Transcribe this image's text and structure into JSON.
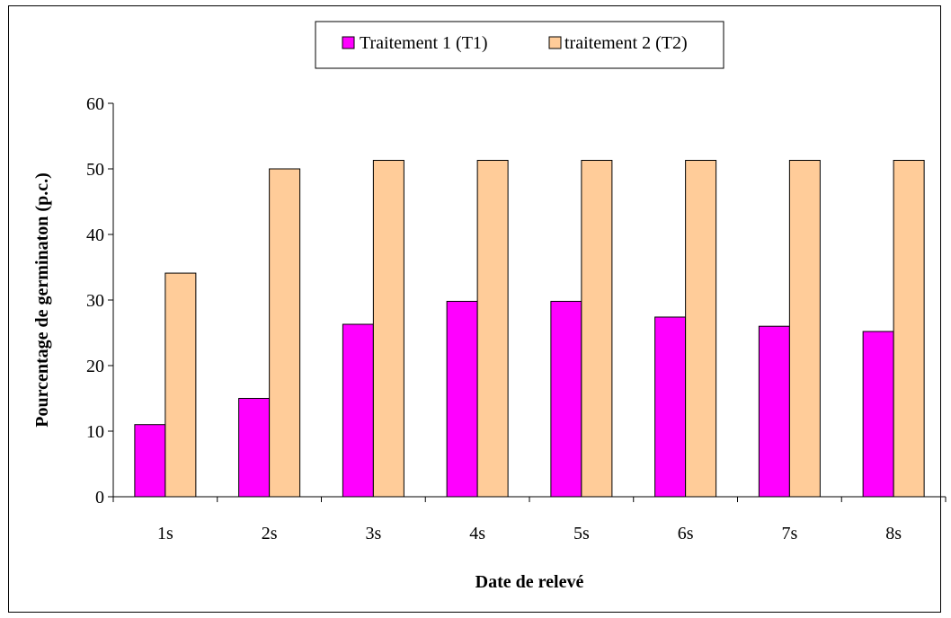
{
  "chart_data": {
    "type": "bar",
    "title": "",
    "xlabel": "Date de relevé",
    "ylabel": "Pourcentage de germinaton (p.c.)",
    "categories": [
      "1s",
      "2s",
      "3s",
      "4s",
      "5s",
      "6s",
      "7s",
      "8s"
    ],
    "series": [
      {
        "name": "Traitement 1 (T1)",
        "color": "#FF00FF",
        "values": [
          11,
          15,
          26.3,
          29.8,
          29.8,
          27.4,
          26,
          25.2
        ]
      },
      {
        "name": "traitement 2 (T2)",
        "color": "#FFCC99",
        "values": [
          34.1,
          50,
          51.3,
          51.3,
          51.3,
          51.3,
          51.3,
          51.3
        ]
      }
    ],
    "ylim": [
      0,
      60
    ],
    "yticks": [
      0,
      10,
      20,
      30,
      40,
      50,
      60
    ],
    "grid": false,
    "legend": "top-center"
  }
}
